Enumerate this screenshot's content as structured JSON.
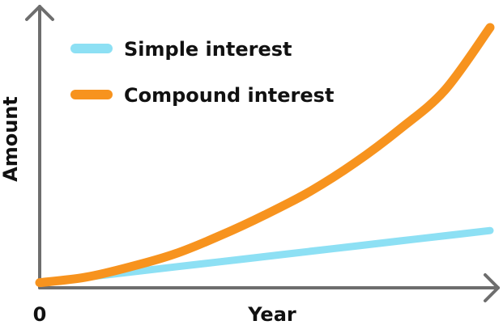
{
  "chart_data": {
    "type": "line",
    "title": "",
    "xlabel": "Year",
    "ylabel": "Amount",
    "x_tick_labels": [
      "0"
    ],
    "xlim": [
      0,
      10
    ],
    "ylim": [
      0,
      10
    ],
    "grid": false,
    "legend_position": "top-left",
    "series": [
      {
        "name": "Simple interest",
        "color": "#8de0f4",
        "x": [
          0,
          1,
          2,
          3,
          4,
          5,
          6,
          7,
          8,
          9,
          10
        ],
        "y": [
          0.2,
          0.4,
          0.6,
          0.8,
          1.0,
          1.2,
          1.4,
          1.6,
          1.8,
          2.0,
          2.2
        ]
      },
      {
        "name": "Compound interest",
        "color": "#f7931e",
        "x": [
          0,
          1,
          2,
          3,
          4,
          5,
          6,
          7,
          8,
          9,
          10
        ],
        "y": [
          0.2,
          0.4,
          0.8,
          1.3,
          2.0,
          2.8,
          3.7,
          4.8,
          6.1,
          7.6,
          10.0
        ]
      }
    ]
  }
}
